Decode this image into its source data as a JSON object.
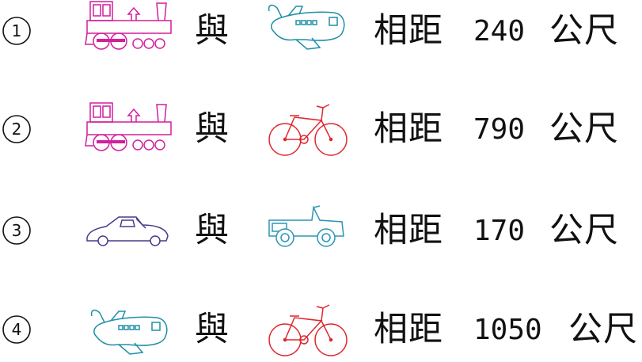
{
  "rows": [
    {
      "number": "1",
      "first_vehicle": "train-icon",
      "connector": "與",
      "second_vehicle": "airplane-icon",
      "distance_label": "相距",
      "distance": "240",
      "unit": "公尺"
    },
    {
      "number": "2",
      "first_vehicle": "train-icon",
      "connector": "與",
      "second_vehicle": "bicycle-icon",
      "distance_label": "相距",
      "distance": "790",
      "unit": "公尺"
    },
    {
      "number": "3",
      "first_vehicle": "car-icon",
      "connector": "與",
      "second_vehicle": "jeep-icon",
      "distance_label": "相距",
      "distance": "170",
      "unit": "公尺"
    },
    {
      "number": "4",
      "first_vehicle": "airplane-icon",
      "connector": "與",
      "second_vehicle": "bicycle-icon",
      "distance_label": "相距",
      "distance": "1050",
      "unit": "公尺"
    }
  ],
  "colors": {
    "train": "#d21f9c",
    "airplane": "#1e8fa8",
    "bicycle": "#e0262f",
    "car": "#4a3a8c",
    "jeep": "#2c95b5",
    "text": "#111111"
  }
}
